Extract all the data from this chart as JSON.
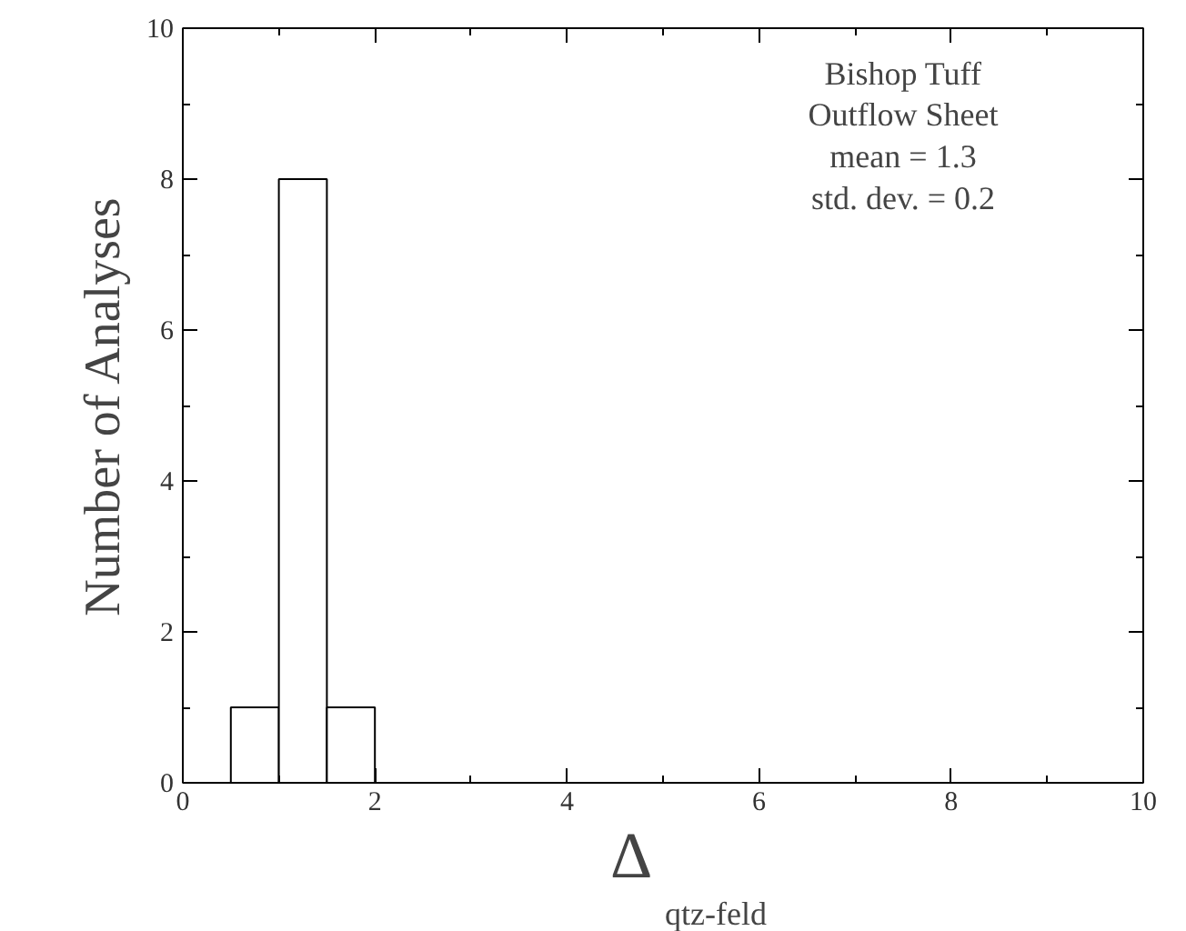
{
  "chart_data": {
    "type": "histogram",
    "xlabel": "Δ$_{qtz-feld}$",
    "ylabel": "Number of Analyses",
    "bins": [
      0.5,
      1.0,
      1.5,
      2.0
    ],
    "values": [
      1,
      8,
      1
    ],
    "color": "#ffffff",
    "xlim": [
      0,
      10
    ],
    "ylim": [
      0,
      10
    ],
    "xticks": [
      0,
      2,
      4,
      6,
      8,
      10
    ],
    "yticks": [
      0,
      2,
      4,
      6,
      8,
      10
    ],
    "grid": false,
    "annotations": [
      "Bishop Tuff",
      "Outflow Sheet",
      "mean = 1.3",
      "std. dev. = 0.2"
    ]
  }
}
